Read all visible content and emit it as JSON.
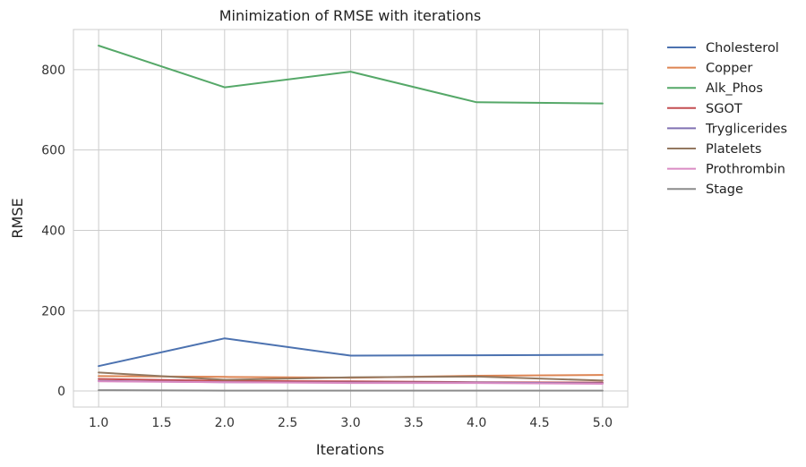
{
  "chart_data": {
    "type": "line",
    "title": "Minimization of RMSE with iterations",
    "xlabel": "Iterations",
    "ylabel": "RMSE",
    "x": [
      1,
      2,
      3,
      4,
      5
    ],
    "xlim": [
      0.8,
      5.2
    ],
    "ylim": [
      -40,
      900
    ],
    "xticks": [
      "1.0",
      "1.5",
      "2.0",
      "2.5",
      "3.0",
      "3.5",
      "4.0",
      "4.5",
      "5.0"
    ],
    "yticks": [
      "0",
      "200",
      "400",
      "600",
      "800"
    ],
    "grid": true,
    "legend_position": "outside-right",
    "series": [
      {
        "name": "Cholesterol",
        "color": "#4c72b0",
        "values": [
          62,
          131,
          88,
          89,
          90
        ]
      },
      {
        "name": "Copper",
        "color": "#dd8452",
        "values": [
          37,
          35,
          33,
          38,
          40
        ]
      },
      {
        "name": "Alk_Phos",
        "color": "#55a868",
        "values": [
          860,
          756,
          795,
          719,
          716
        ]
      },
      {
        "name": "SGOT",
        "color": "#c44e52",
        "values": [
          30,
          25,
          24,
          22,
          21
        ]
      },
      {
        "name": "Tryglicerides",
        "color": "#8172b3",
        "values": [
          25,
          22,
          21,
          21,
          19
        ]
      },
      {
        "name": "Platelets",
        "color": "#937860",
        "values": [
          46,
          28,
          34,
          36,
          26
        ]
      },
      {
        "name": "Prothrombin",
        "color": "#da8bc3",
        "values": [
          24,
          22,
          20,
          20,
          18
        ]
      },
      {
        "name": "Stage",
        "color": "#8c8c8c",
        "values": [
          2,
          1,
          1,
          1,
          1
        ]
      }
    ]
  }
}
